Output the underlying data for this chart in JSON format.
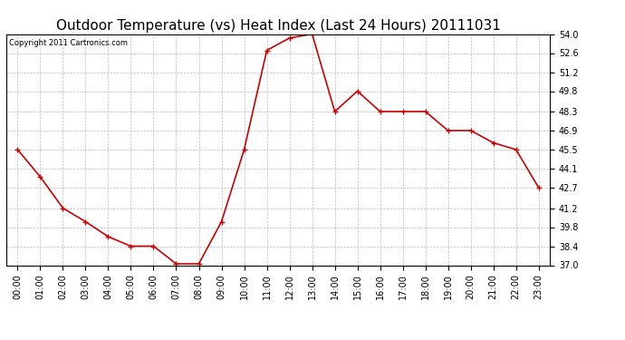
{
  "title": "Outdoor Temperature (vs) Heat Index (Last 24 Hours) 20111031",
  "copyright": "Copyright 2011 Cartronics.com",
  "x_labels": [
    "00:00",
    "01:00",
    "02:00",
    "03:00",
    "04:00",
    "05:00",
    "06:00",
    "07:00",
    "08:00",
    "09:00",
    "10:00",
    "11:00",
    "12:00",
    "13:00",
    "14:00",
    "15:00",
    "16:00",
    "17:00",
    "18:00",
    "19:00",
    "20:00",
    "21:00",
    "22:00",
    "23:00"
  ],
  "y_values": [
    45.5,
    43.5,
    41.2,
    40.2,
    39.1,
    38.4,
    38.4,
    37.1,
    37.1,
    40.2,
    45.5,
    52.8,
    53.7,
    54.0,
    48.3,
    49.8,
    48.3,
    48.3,
    48.3,
    46.9,
    46.9,
    46.0,
    45.5,
    42.7
  ],
  "ylim": [
    37.0,
    54.0
  ],
  "yticks": [
    37.0,
    38.4,
    39.8,
    41.2,
    42.7,
    44.1,
    45.5,
    46.9,
    48.3,
    49.8,
    51.2,
    52.6,
    54.0
  ],
  "line_color": "#cc0000",
  "marker": "+",
  "marker_size": 4,
  "background_color": "#ffffff",
  "grid_color": "#bbbbbb",
  "title_fontsize": 11,
  "label_fontsize": 7,
  "copyright_fontsize": 6
}
